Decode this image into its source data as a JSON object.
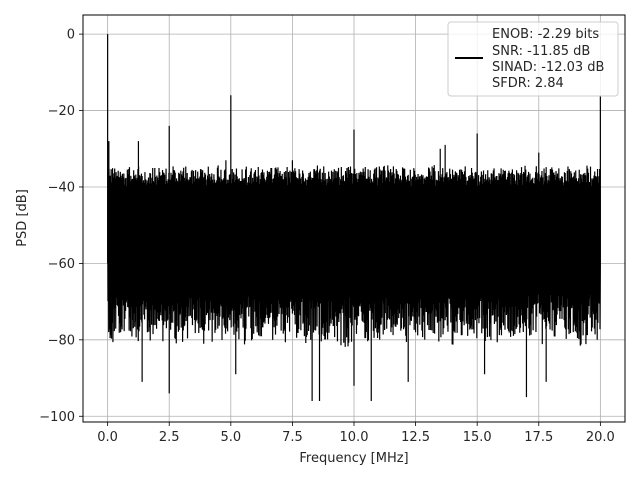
{
  "chart_data": {
    "type": "line",
    "title": "",
    "xlabel": "Frequency [MHz]",
    "ylabel": "PSD [dB]",
    "xlim": [
      -1.0,
      21.0
    ],
    "ylim": [
      -101.5,
      5.0
    ],
    "grid": true,
    "legend_position": "top-right",
    "x_ticks": [
      0.0,
      2.5,
      5.0,
      7.5,
      10.0,
      12.5,
      15.0,
      17.5,
      20.0
    ],
    "x_tick_labels": [
      "0.0",
      "2.5",
      "5.0",
      "7.5",
      "10.0",
      "12.5",
      "15.0",
      "17.5",
      "20.0"
    ],
    "y_ticks": [
      0,
      -20,
      -40,
      -60,
      -80,
      -100
    ],
    "y_tick_labels": [
      "0",
      "−20",
      "−40",
      "−60",
      "−80",
      "−100"
    ],
    "series": [
      {
        "color": "#000000",
        "x_range": [
          0.0,
          20.0
        ],
        "noise_floor_top": -38,
        "noise_floor_bottom": -78,
        "spurs": [
          {
            "x": 0.0,
            "y": 0
          },
          {
            "x": 0.05,
            "y": -28
          },
          {
            "x": 1.25,
            "y": -28
          },
          {
            "x": 2.5,
            "y": -24
          },
          {
            "x": 4.8,
            "y": -33
          },
          {
            "x": 5.0,
            "y": -16
          },
          {
            "x": 7.5,
            "y": -33
          },
          {
            "x": 10.0,
            "y": -25
          },
          {
            "x": 13.5,
            "y": -30
          },
          {
            "x": 13.7,
            "y": -29
          },
          {
            "x": 15.0,
            "y": -26
          },
          {
            "x": 17.5,
            "y": -31
          },
          {
            "x": 20.0,
            "y": -16
          }
        ],
        "deep_notches": [
          {
            "x": 1.4,
            "y": -91
          },
          {
            "x": 2.5,
            "y": -94
          },
          {
            "x": 5.2,
            "y": -89
          },
          {
            "x": 8.3,
            "y": -96
          },
          {
            "x": 8.6,
            "y": -96
          },
          {
            "x": 10.0,
            "y": -92
          },
          {
            "x": 10.7,
            "y": -96
          },
          {
            "x": 12.2,
            "y": -91
          },
          {
            "x": 15.3,
            "y": -89
          },
          {
            "x": 17.0,
            "y": -95
          },
          {
            "x": 17.8,
            "y": -91
          }
        ]
      }
    ],
    "legend": {
      "line_color": "#000000",
      "entries": [
        "ENOB: -2.29 bits",
        "SNR: -11.85 dB",
        "SINAD: -12.03 dB",
        "SFDR: 2.84"
      ]
    }
  }
}
